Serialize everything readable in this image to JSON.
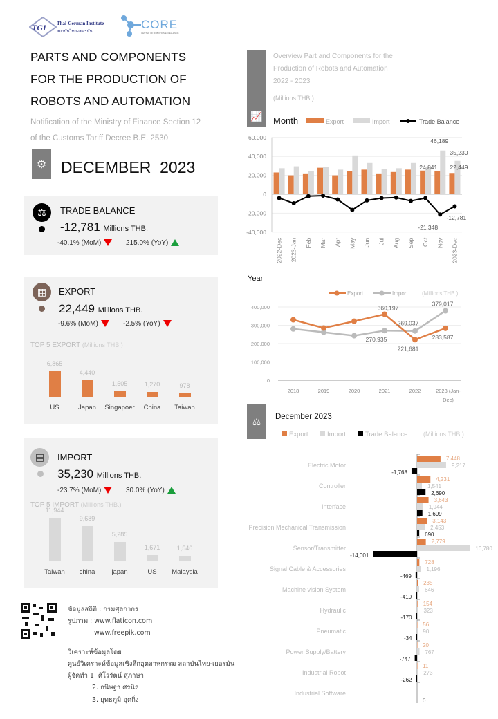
{
  "logos": {
    "tgi": "TGI",
    "tgi_name_en": "Thai-German Institute",
    "tgi_name_th": "สถาบันไทย-เยอรมัน",
    "core": "CORE",
    "core_sub": "CENTER OF ROBOTICS EXCELLENCE"
  },
  "header": {
    "title_lines": [
      "PARTS AND COMPONENTS",
      "FOR THE PRODUCTION OF",
      "ROBOTS AND AUTOMATION"
    ],
    "subtitle_lines": [
      "Notification of the Ministry of Finance Section 12",
      "of the Customs Tariff Decree B.E. 2530"
    ],
    "period": "DECEMBER  2023"
  },
  "trade_balance": {
    "label": "TRADE BALANCE",
    "value": "-12,781",
    "unit": "Millions THB.",
    "mom": "-40.1% (MoM)",
    "mom_dir": "down",
    "yoy": "215.0% (YoY)",
    "yoy_dir": "up"
  },
  "export": {
    "label": "EXPORT",
    "value": "22,449",
    "unit": "Millions THB.",
    "mom": "-9.6% (MoM)",
    "mom_dir": "down",
    "yoy": "-2.5% (YoY)",
    "yoy_dir": "down",
    "top5_title": "TOP 5 EXPORT",
    "top5_unit": "(Millions THB.)",
    "top5": [
      {
        "country": "US",
        "value": 6865,
        "label": "6,865"
      },
      {
        "country": "Japan",
        "value": 4440,
        "label": "4,440"
      },
      {
        "country": "Singapoer",
        "value": 1505,
        "label": "1,505"
      },
      {
        "country": "China",
        "value": 1270,
        "label": "1,270"
      },
      {
        "country": "Taiwan",
        "value": 978,
        "label": "978"
      }
    ]
  },
  "import": {
    "label": "IMPORT",
    "value": "35,230",
    "unit": "Millions THB.",
    "mom": "-23.7% (MoM)",
    "mom_dir": "down",
    "yoy": "30.0% (YoY)",
    "yoy_dir": "up",
    "top5_title": "TOP 5 IMPORT",
    "top5_unit": "(Millions THB.)",
    "top5": [
      {
        "country": "Taiwan",
        "value": 11944,
        "label": "11,944"
      },
      {
        "country": "china",
        "value": 9689,
        "label": "9,689"
      },
      {
        "country": "japan",
        "value": 5285,
        "label": "5,285"
      },
      {
        "country": "US",
        "value": 1671,
        "label": "1,671"
      },
      {
        "country": "Malaysia",
        "value": 1546,
        "label": "1,546"
      }
    ]
  },
  "overview": {
    "lines": [
      "Overview Part and Components for the",
      "Production  of Robots and Automation",
      "2022 - 2023"
    ],
    "unit": "(Millions THB.)"
  },
  "footer": {
    "source": "ข้อมูลสถิติ : กรมศุลกากร",
    "images": "รูปภาพ : www.flaticon.com",
    "images2": "www.freepik.com",
    "analysis": "วิเคราะห์ข้อมูลโดย",
    "center": "ศูนย์วิเคราะห์ข้อมูลเชิงลึกอุตสาหกรรม สถาบันไทย-เยอรมัน",
    "prepared": "ผู้จัดทำ  1. ศิโรรัตน์ สุภาษา",
    "p2": "2. กนิษฐา ศรนิล",
    "p3": "3. ยุทธภูมิ อุดกิ่ง"
  },
  "colors": {
    "export": "#e07f45",
    "import": "#d9d9d9",
    "balance": "#000000",
    "panel": "#f2f2f2",
    "down": "#ee0000",
    "up": "#1a9e3c"
  },
  "chart_data": [
    {
      "type": "bar",
      "title": "Month",
      "legend": [
        "Export",
        "Import",
        "Trade Balance"
      ],
      "legend_position": "top",
      "categories": [
        "2022-Dec",
        "2023-Jan",
        "Feb",
        "Mar",
        "Apr",
        "May",
        "Jun",
        "Jul",
        "Aug",
        "Sep",
        "Oct",
        "Nov",
        "2023-Dec"
      ],
      "series": [
        {
          "name": "Export",
          "values": [
            23000,
            20000,
            22000,
            28000,
            20000,
            24500,
            26000,
            22000,
            23500,
            26000,
            25000,
            24841,
            22449
          ]
        },
        {
          "name": "Import",
          "values": [
            27500,
            29500,
            24500,
            29000,
            26000,
            41000,
            33000,
            26500,
            27500,
            33000,
            28500,
            46189,
            35230
          ]
        },
        {
          "name": "Trade Balance",
          "type": "line",
          "values": [
            -4000,
            -9500,
            -2000,
            -1500,
            -5500,
            -16500,
            -6500,
            -4000,
            -3500,
            -7000,
            -4000,
            -21348,
            -12781
          ]
        }
      ],
      "data_labels": [
        {
          "series": "Export",
          "category": "Nov",
          "text": "24,841"
        },
        {
          "series": "Import",
          "category": "Nov",
          "text": "46,189"
        },
        {
          "series": "Export",
          "category": "2023-Dec",
          "text": "22,449"
        },
        {
          "series": "Import",
          "category": "2023-Dec",
          "text": "35,230"
        },
        {
          "series": "Trade Balance",
          "category": "Nov",
          "text": "-21,348"
        },
        {
          "series": "Trade Balance",
          "category": "2023-Dec",
          "text": "-12,781"
        }
      ],
      "yticks": [
        "60,000",
        "40,000",
        "20,000",
        "0",
        "-20,000",
        "-40,000"
      ],
      "ylim": [
        -40000,
        60000
      ],
      "grid": true
    },
    {
      "type": "line",
      "title": "Year",
      "unit": "(Millions THB.)",
      "legend": [
        "Export",
        "Import"
      ],
      "legend_position": "top-right",
      "categories": [
        "2018",
        "2019",
        "2020",
        "2021",
        "2022",
        "2023 (Jan-Dec)"
      ],
      "series": [
        {
          "name": "Export",
          "values": [
            330000,
            285000,
            322000,
            360197,
            221681,
            283587
          ]
        },
        {
          "name": "Import",
          "values": [
            280000,
            262000,
            243000,
            270935,
            269037,
            379017
          ]
        }
      ],
      "data_labels": [
        {
          "series": "Export",
          "category": "2021",
          "text": "360,197"
        },
        {
          "series": "Import",
          "category": "2021",
          "text": "270,935"
        },
        {
          "series": "Import",
          "category": "2022",
          "text": "269,037"
        },
        {
          "series": "Export",
          "category": "2022",
          "text": "221,681"
        },
        {
          "series": "Import",
          "category": "2023 (Jan-Dec)",
          "text": "379,017"
        },
        {
          "series": "Export",
          "category": "2023 (Jan-Dec)",
          "text": "283,587"
        }
      ],
      "yticks": [
        "400,000",
        "300,000",
        "200,000",
        "100,000",
        "0"
      ],
      "ylim": [
        0,
        400000
      ],
      "grid": true
    },
    {
      "type": "bar",
      "orientation": "horizontal",
      "title": "December 2023",
      "unit": "(Millions THB.)",
      "legend": [
        "Export",
        "Import",
        "Trade Balance"
      ],
      "legend_position": "top",
      "categories": [
        "Electric Motor",
        "Controller",
        "Interface",
        "Precision Mechanical Transmission",
        "Sensor/Transmitter",
        "Signal Cable & Accessories",
        "Machine vision System",
        "Hydraulic",
        "Pneumatic",
        "Power Supply/Battery",
        "Industrial Robot",
        "Industrial Software"
      ],
      "series": [
        {
          "name": "Export",
          "values": [
            7448,
            4231,
            3643,
            3143,
            2779,
            728,
            235,
            154,
            56,
            20,
            11,
            null
          ],
          "labels": [
            "7,448",
            "4,231",
            "3,643",
            "3,143",
            "2,779",
            "728",
            "235",
            "154",
            "56",
            "20",
            "11",
            ""
          ]
        },
        {
          "name": "Import",
          "values": [
            9217,
            1541,
            1944,
            2453,
            16780,
            1196,
            646,
            323,
            90,
            767,
            273,
            null
          ],
          "labels": [
            "9,217",
            "1,541",
            "1,944",
            "2,453",
            "16,780",
            "1,196",
            "646",
            "323",
            "90",
            "767",
            "273",
            ""
          ]
        },
        {
          "name": "Trade Balance",
          "values": [
            -1768,
            2690,
            1699,
            690,
            -14001,
            -469,
            -410,
            -170,
            -34,
            -747,
            -262,
            0
          ],
          "labels": [
            "-1,768",
            "2,690",
            "1,699",
            "690",
            "-14,001",
            "-469",
            "-410",
            "-170",
            "-34",
            "-747",
            "-262",
            "0"
          ]
        }
      ]
    }
  ]
}
